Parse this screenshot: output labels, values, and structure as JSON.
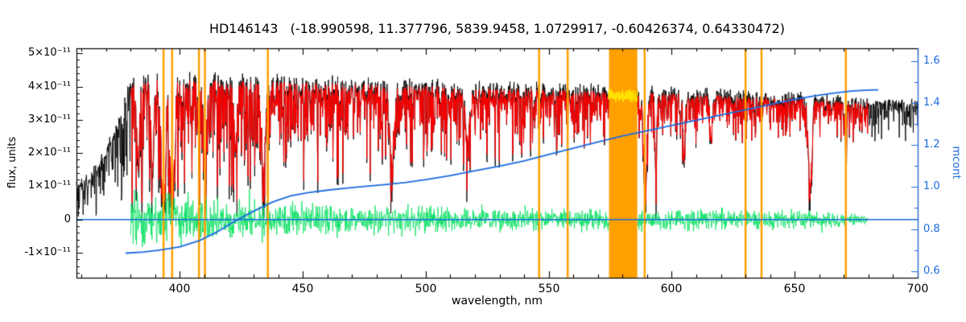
{
  "chart_data": {
    "type": "line",
    "title": "HD146143   (-18.990598, 11.377796, 5839.9458, 1.0729917, -0.60426374, 0.64330472)",
    "object": "HD146143",
    "title_params": [
      -18.990598,
      11.377796,
      5839.9458,
      1.0729917,
      -0.60426374,
      0.64330472
    ],
    "xlabel": "wavelength, nm",
    "ylabel_left": "flux, units",
    "ylabel_right": "mcont",
    "flux_unit": "1e-11",
    "x_range": [
      358,
      700
    ],
    "y_left_range": [
      -1.75,
      5.15
    ],
    "y_right_range": [
      0.568,
      1.661
    ],
    "grid": false,
    "legend": "none",
    "axes": {
      "x": {
        "label": "wavelength, nm",
        "tick_values": [
          400,
          450,
          500,
          550,
          600,
          650,
          700
        ],
        "tick_labels": [
          "400",
          "450",
          "500",
          "550",
          "600",
          "650",
          "700"
        ],
        "minor_step": 10
      },
      "y_left": {
        "label": "flux, units",
        "tick_values": [
          5,
          4,
          3,
          2,
          1,
          0,
          -1
        ],
        "tick_labels": [
          "5×10⁻¹¹",
          "4×10⁻¹¹",
          "3×10⁻¹¹",
          "2×10⁻¹¹",
          "1×10⁻¹¹",
          "0",
          "-1×10⁻¹¹"
        ],
        "minor_step": 0.2
      },
      "y_right": {
        "label": "mcont",
        "tick_values": [
          1.6,
          1.4,
          1.2,
          1.0,
          0.8,
          0.6
        ],
        "tick_labels": [
          "1.6",
          "1.4",
          "1.2",
          "1.0",
          "0.8",
          "0.6"
        ],
        "minor_step": 0.1,
        "color": "#1b6be0"
      }
    },
    "colors": {
      "observed": "#000000",
      "model": "#ff0000",
      "residual": "#00e05a",
      "continuum": "#1b6be0",
      "marker": "#ffa000",
      "masked": "#ffe800",
      "axis": "#000000"
    },
    "series": [
      {
        "name": "observed-spectrum",
        "color": "#000000",
        "x_range": [
          358,
          700
        ]
      },
      {
        "name": "model-spectrum",
        "color": "#ff0000",
        "x_range": [
          380,
          680
        ]
      },
      {
        "name": "residual",
        "color": "#00e05a",
        "x_range": [
          380,
          680
        ]
      },
      {
        "name": "masked-spectrum",
        "color": "#ffe800",
        "x_range": [
          574.5,
          586
        ]
      },
      {
        "name": "mcont-continuum",
        "color": "#1b6be0",
        "x_range": [
          378,
          684
        ]
      }
    ],
    "envelope": [
      [
        358,
        1.1
      ],
      [
        363,
        1.35
      ],
      [
        368,
        1.9
      ],
      [
        372,
        2.5
      ],
      [
        376,
        3.2
      ],
      [
        379,
        4.1
      ],
      [
        385,
        4.3
      ],
      [
        400,
        4.27
      ],
      [
        430,
        4.22
      ],
      [
        460,
        4.17
      ],
      [
        490,
        4.12
      ],
      [
        520,
        4.02
      ],
      [
        550,
        3.97
      ],
      [
        580,
        3.92
      ],
      [
        610,
        3.82
      ],
      [
        640,
        3.74
      ],
      [
        670,
        3.62
      ],
      [
        700,
        3.47
      ]
    ],
    "line_density": [
      [
        358,
        1.15
      ],
      [
        380,
        1.05
      ],
      [
        400,
        1.0
      ],
      [
        430,
        0.95
      ],
      [
        460,
        0.85
      ],
      [
        500,
        0.75
      ],
      [
        540,
        0.62
      ],
      [
        580,
        0.5
      ],
      [
        620,
        0.45
      ],
      [
        660,
        0.42
      ],
      [
        700,
        0.4
      ]
    ],
    "residual_amplitude": [
      [
        380,
        0.95
      ],
      [
        395,
        0.85
      ],
      [
        410,
        0.7
      ],
      [
        430,
        0.6
      ],
      [
        450,
        0.55
      ],
      [
        470,
        0.5
      ],
      [
        490,
        0.45
      ],
      [
        520,
        0.4
      ],
      [
        560,
        0.38
      ],
      [
        600,
        0.36
      ],
      [
        630,
        0.34
      ],
      [
        660,
        0.3
      ],
      [
        672,
        0.22
      ],
      [
        680,
        0.1
      ]
    ],
    "absorption_lines": [
      {
        "wl": 383.0,
        "depth": 0.5,
        "width": 0.8
      },
      {
        "wl": 388.9,
        "depth": 0.55,
        "width": 0.8
      },
      {
        "wl": 393.4,
        "depth": 0.9,
        "width": 1.1
      },
      {
        "wl": 396.9,
        "depth": 0.9,
        "width": 1.1
      },
      {
        "wl": 410.2,
        "depth": 0.5,
        "width": 1.0
      },
      {
        "wl": 422.7,
        "depth": 0.45,
        "width": 0.7
      },
      {
        "wl": 434.0,
        "depth": 0.55,
        "width": 1.1
      },
      {
        "wl": 486.1,
        "depth": 0.55,
        "width": 1.2
      },
      {
        "wl": 517.0,
        "depth": 0.4,
        "width": 1.2
      },
      {
        "wl": 589.2,
        "depth": 0.82,
        "width": 0.9
      },
      {
        "wl": 593.5,
        "depth": 0.6,
        "width": 0.5
      },
      {
        "wl": 605.0,
        "depth": 0.55,
        "width": 0.5
      },
      {
        "wl": 616.0,
        "depth": 0.35,
        "width": 0.6
      },
      {
        "wl": 656.3,
        "depth": 0.75,
        "width": 1.0
      },
      {
        "wl": 670.8,
        "depth": 0.3,
        "width": 0.5
      }
    ],
    "mcont_curve": [
      [
        378,
        0.685
      ],
      [
        385,
        0.69
      ],
      [
        392,
        0.7
      ],
      [
        400,
        0.715
      ],
      [
        408,
        0.745
      ],
      [
        415,
        0.785
      ],
      [
        422,
        0.835
      ],
      [
        430,
        0.885
      ],
      [
        438,
        0.93
      ],
      [
        445,
        0.958
      ],
      [
        452,
        0.973
      ],
      [
        460,
        0.985
      ],
      [
        468,
        0.995
      ],
      [
        476,
        1.004
      ],
      [
        484,
        1.012
      ],
      [
        492,
        1.022
      ],
      [
        500,
        1.035
      ],
      [
        510,
        1.055
      ],
      [
        520,
        1.078
      ],
      [
        530,
        1.1
      ],
      [
        540,
        1.125
      ],
      [
        550,
        1.155
      ],
      [
        560,
        1.185
      ],
      [
        570,
        1.215
      ],
      [
        580,
        1.243
      ],
      [
        590,
        1.268
      ],
      [
        600,
        1.293
      ],
      [
        610,
        1.318
      ],
      [
        620,
        1.343
      ],
      [
        630,
        1.368
      ],
      [
        640,
        1.393
      ],
      [
        650,
        1.418
      ],
      [
        658,
        1.434
      ],
      [
        666,
        1.448
      ],
      [
        673,
        1.457
      ],
      [
        680,
        1.462
      ],
      [
        684,
        1.463
      ]
    ],
    "zero_line": 0,
    "markers": {
      "color": "#ffa000",
      "lines": [
        393.4,
        396.9,
        407.8,
        410.2,
        435.8,
        546.1,
        557.7,
        589.0,
        630.0,
        636.5,
        670.8
      ],
      "band": [
        574.5,
        586.0
      ]
    }
  }
}
